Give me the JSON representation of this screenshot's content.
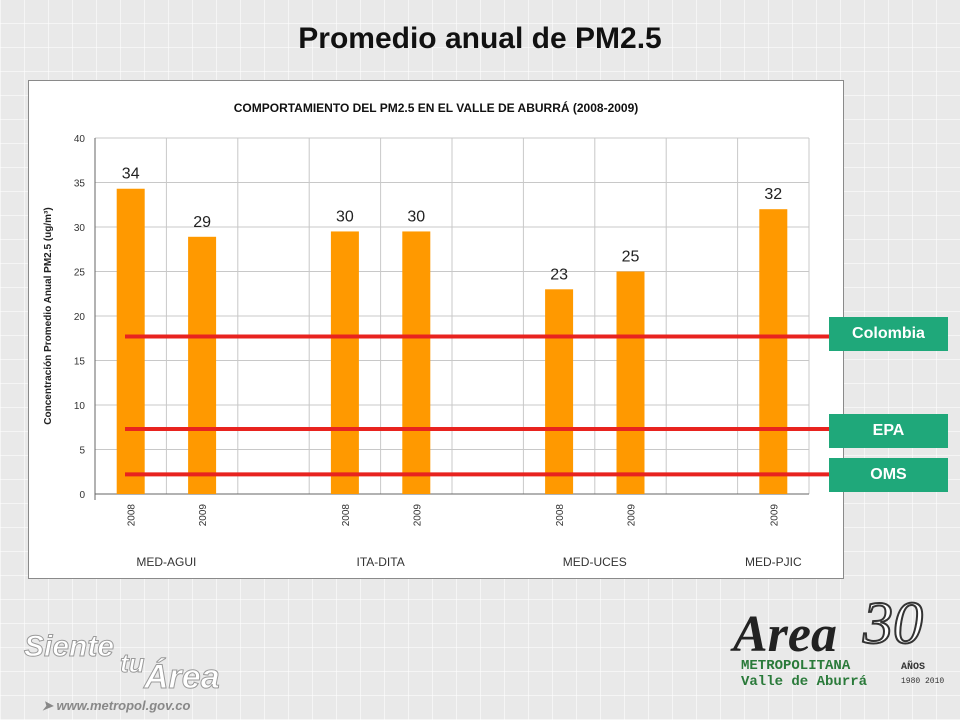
{
  "slide": {
    "title": "Promedio anual de PM2.5",
    "website": "www.metropol.gov.co"
  },
  "chart_data": {
    "type": "bar",
    "title": "COMPORTAMIENTO DEL PM2.5 EN EL VALLE DE ABURRÁ (2008-2009)",
    "ylabel": "Concentración Promedio Anual PM2.5 (ug/m³)",
    "ylim": [
      0,
      40
    ],
    "yticks": [
      0,
      5,
      10,
      15,
      20,
      25,
      30,
      35,
      40
    ],
    "grid": true,
    "bar_color": "#ff9900",
    "slots": [
      "2008",
      "2009",
      "",
      "2008",
      "2009",
      "",
      "2008",
      "2009",
      "",
      "2009"
    ],
    "groups": [
      {
        "label": "MED-AGUI",
        "bars": [
          {
            "year": "2008",
            "value": 34.3,
            "label": "34"
          },
          {
            "year": "2009",
            "value": 28.9,
            "label": "29"
          }
        ]
      },
      {
        "label": "ITA-DITA",
        "bars": [
          {
            "year": "2008",
            "value": 29.5,
            "label": "30"
          },
          {
            "year": "2009",
            "value": 29.5,
            "label": "30"
          }
        ]
      },
      {
        "label": "MED-UCES",
        "bars": [
          {
            "year": "2008",
            "value": 23,
            "label": "23"
          },
          {
            "year": "2009",
            "value": 25,
            "label": "25"
          }
        ]
      },
      {
        "label": "MED-PJIC",
        "bars": [
          {
            "year": "2009",
            "value": 32,
            "label": "32"
          }
        ]
      }
    ],
    "reference_lines": [
      {
        "name": "Colombia",
        "value": 17.7,
        "color": "#e8231f"
      },
      {
        "name": "EPA",
        "value": 7.3,
        "color": "#e8231f"
      },
      {
        "name": "OMS",
        "value": 2.2,
        "color": "#e8231f"
      }
    ]
  },
  "branding": {
    "slogan_word1": "Siente",
    "slogan_word2": "tu",
    "slogan_word3": "Área",
    "logo_word": "Area",
    "logo_number": "30",
    "logo_line1": "METROPOLITANA",
    "logo_line2": "Valle de Aburrá",
    "logo_years_label": "AÑOS",
    "logo_years_range": "1980 2010",
    "tag_color": "#1fa87a"
  }
}
